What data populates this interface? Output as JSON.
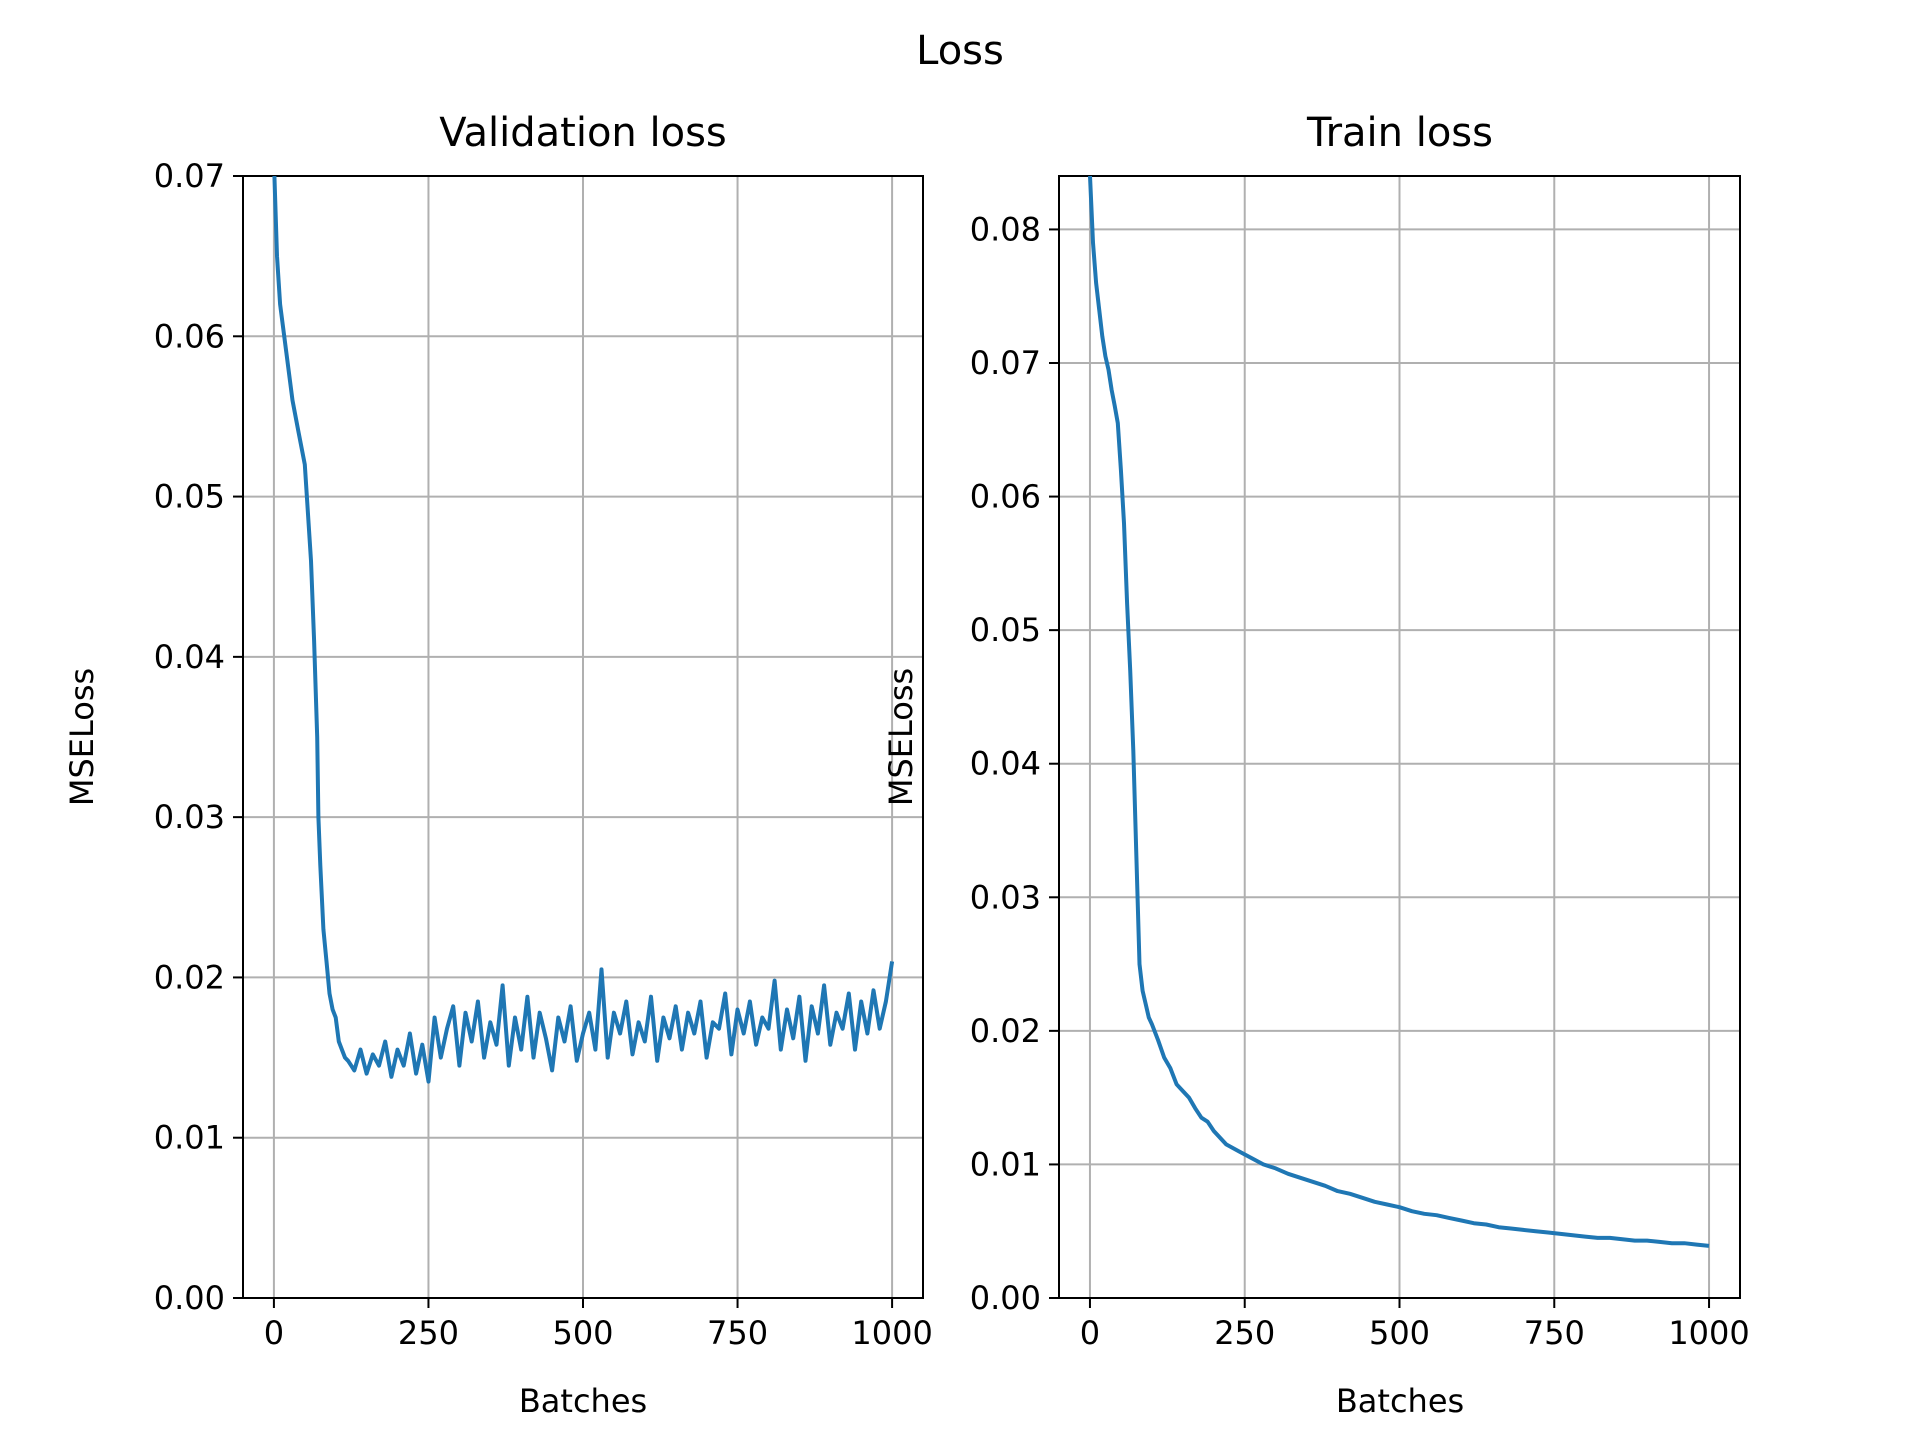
{
  "figure_title": "Loss",
  "colors": {
    "line": "#1f77b4",
    "grid": "#b0b0b0",
    "axes": "#000000"
  },
  "chart_data": [
    {
      "type": "line",
      "title": "Validation loss",
      "xlabel": "Batches",
      "ylabel": "MSELoss",
      "xlim": [
        -50,
        1050
      ],
      "ylim": [
        0,
        0.07
      ],
      "xticks": [
        0,
        250,
        500,
        750,
        1000
      ],
      "xtick_labels": [
        "0",
        "250",
        "500",
        "750",
        "1000"
      ],
      "yticks": [
        0,
        0.01,
        0.02,
        0.03,
        0.04,
        0.05,
        0.06,
        0.07
      ],
      "ytick_labels": [
        "0.00",
        "0.01",
        "0.02",
        "0.03",
        "0.04",
        "0.05",
        "0.06",
        "0.07"
      ],
      "grid": true,
      "series": [
        {
          "x": [
            0,
            5,
            10,
            20,
            30,
            40,
            50,
            55,
            60,
            65,
            70,
            72,
            75,
            80,
            85,
            90,
            95,
            100,
            105,
            110,
            115,
            120,
            125,
            130,
            140,
            150,
            160,
            170,
            180,
            190,
            200,
            210,
            220,
            230,
            240,
            250,
            260,
            270,
            280,
            290,
            300,
            310,
            320,
            330,
            340,
            350,
            360,
            370,
            380,
            390,
            400,
            410,
            420,
            430,
            440,
            450,
            460,
            470,
            480,
            490,
            500,
            510,
            520,
            530,
            540,
            550,
            560,
            570,
            580,
            590,
            600,
            610,
            620,
            630,
            640,
            650,
            660,
            670,
            680,
            690,
            700,
            710,
            720,
            730,
            740,
            750,
            760,
            770,
            780,
            790,
            800,
            810,
            820,
            830,
            840,
            850,
            860,
            870,
            880,
            890,
            900,
            910,
            920,
            930,
            940,
            950,
            960,
            970,
            980,
            990,
            1000
          ],
          "y": [
            0.071,
            0.065,
            0.062,
            0.059,
            0.056,
            0.054,
            0.052,
            0.049,
            0.046,
            0.041,
            0.035,
            0.03,
            0.027,
            0.023,
            0.021,
            0.019,
            0.018,
            0.0175,
            0.016,
            0.0155,
            0.015,
            0.0148,
            0.0145,
            0.0142,
            0.0155,
            0.014,
            0.0152,
            0.0145,
            0.016,
            0.0138,
            0.0155,
            0.0145,
            0.0165,
            0.014,
            0.0158,
            0.0135,
            0.0175,
            0.015,
            0.0168,
            0.0182,
            0.0145,
            0.0178,
            0.016,
            0.0185,
            0.015,
            0.0172,
            0.0158,
            0.0195,
            0.0145,
            0.0175,
            0.0155,
            0.0188,
            0.015,
            0.0178,
            0.0162,
            0.0142,
            0.0175,
            0.016,
            0.0182,
            0.0148,
            0.0165,
            0.0178,
            0.0155,
            0.0205,
            0.015,
            0.0178,
            0.0165,
            0.0185,
            0.0152,
            0.0172,
            0.016,
            0.0188,
            0.0148,
            0.0175,
            0.0162,
            0.0182,
            0.0155,
            0.0178,
            0.0165,
            0.0185,
            0.015,
            0.0172,
            0.0168,
            0.019,
            0.0152,
            0.018,
            0.0165,
            0.0185,
            0.0158,
            0.0175,
            0.0168,
            0.0198,
            0.0155,
            0.018,
            0.0162,
            0.0188,
            0.0148,
            0.0182,
            0.0165,
            0.0195,
            0.0158,
            0.0178,
            0.0168,
            0.019,
            0.0155,
            0.0185,
            0.0165,
            0.0192,
            0.0168,
            0.0185,
            0.021
          ]
        }
      ]
    },
    {
      "type": "line",
      "title": "Train loss",
      "xlabel": "Batches",
      "ylabel": "MSELoss",
      "xlim": [
        -50,
        1050
      ],
      "ylim": [
        0,
        0.084
      ],
      "xticks": [
        0,
        250,
        500,
        750,
        1000
      ],
      "xtick_labels": [
        "0",
        "250",
        "500",
        "750",
        "1000"
      ],
      "yticks": [
        0,
        0.01,
        0.02,
        0.03,
        0.04,
        0.05,
        0.06,
        0.07,
        0.08
      ],
      "ytick_labels": [
        "0.00",
        "0.01",
        "0.02",
        "0.03",
        "0.04",
        "0.05",
        "0.06",
        "0.07",
        "0.08"
      ],
      "grid": true,
      "series": [
        {
          "x": [
            0,
            5,
            10,
            15,
            20,
            25,
            30,
            35,
            40,
            45,
            50,
            55,
            60,
            65,
            70,
            75,
            80,
            85,
            90,
            95,
            100,
            110,
            120,
            130,
            140,
            150,
            160,
            170,
            180,
            190,
            200,
            220,
            240,
            260,
            280,
            300,
            320,
            340,
            360,
            380,
            400,
            420,
            440,
            460,
            480,
            500,
            520,
            540,
            560,
            580,
            600,
            620,
            640,
            660,
            680,
            700,
            720,
            740,
            760,
            780,
            800,
            820,
            840,
            860,
            880,
            900,
            920,
            940,
            960,
            980,
            1000
          ],
          "y": [
            0.084,
            0.079,
            0.076,
            0.074,
            0.072,
            0.0705,
            0.0695,
            0.068,
            0.0668,
            0.0655,
            0.062,
            0.058,
            0.052,
            0.047,
            0.041,
            0.033,
            0.025,
            0.023,
            0.022,
            0.021,
            0.0205,
            0.0193,
            0.018,
            0.0172,
            0.016,
            0.0155,
            0.015,
            0.0142,
            0.0135,
            0.0132,
            0.0125,
            0.0115,
            0.011,
            0.0105,
            0.01,
            0.0097,
            0.0093,
            0.009,
            0.0087,
            0.0084,
            0.008,
            0.0078,
            0.0075,
            0.0072,
            0.007,
            0.0068,
            0.0065,
            0.0063,
            0.0062,
            0.006,
            0.0058,
            0.0056,
            0.0055,
            0.0053,
            0.0052,
            0.0051,
            0.005,
            0.0049,
            0.0048,
            0.0047,
            0.0046,
            0.0045,
            0.0045,
            0.0044,
            0.0043,
            0.0043,
            0.0042,
            0.0041,
            0.0041,
            0.004,
            0.0039
          ]
        }
      ]
    }
  ]
}
